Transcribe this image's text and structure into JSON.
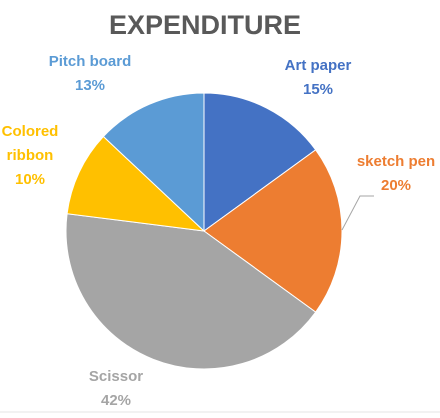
{
  "chart_data": {
    "type": "pie",
    "title": "EXPENDITURE",
    "categories": [
      "Art paper",
      "sketch pen",
      "Scissor",
      "Colored ribbon",
      "Pitch board"
    ],
    "values": [
      15,
      20,
      42,
      10,
      13
    ],
    "value_labels": [
      "15%",
      "20%",
      "42%",
      "10%",
      "13%"
    ],
    "colors": [
      "#4472c4",
      "#ed7d31",
      "#a5a5a5",
      "#ffc000",
      "#5b9bd5"
    ]
  }
}
